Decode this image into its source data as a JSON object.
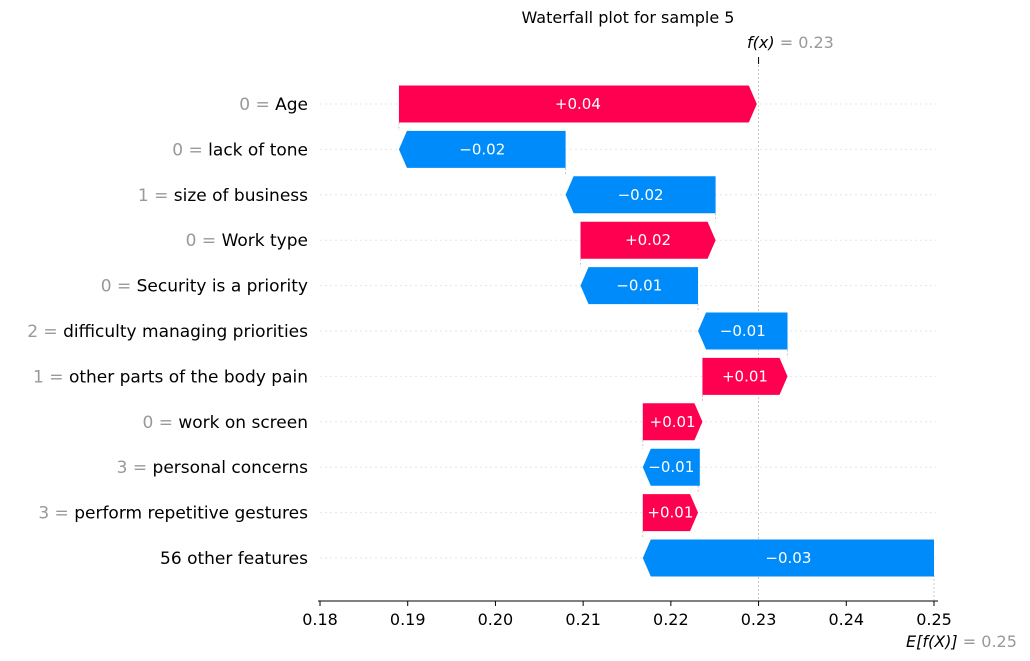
{
  "chart_data": {
    "type": "waterfall",
    "title": "Waterfall plot for sample 5",
    "fx": {
      "label": "f(x)",
      "value": "0.23",
      "x": 0.23
    },
    "efx": {
      "label": "E[f(X)]",
      "value": "0.25",
      "x": 0.25
    },
    "xlim": [
      0.18,
      0.25
    ],
    "xticks": [
      0.18,
      0.19,
      0.2,
      0.21,
      0.22,
      0.23,
      0.24,
      0.25
    ],
    "xtick_labels": [
      "0.18",
      "0.19",
      "0.20",
      "0.21",
      "0.22",
      "0.23",
      "0.24",
      "0.25"
    ],
    "colors": {
      "positive": "#ff0051",
      "negative": "#008bfb"
    },
    "features": [
      {
        "value": "0",
        "name": "Age",
        "label": "+0.04",
        "start": 0.189,
        "end": 0.2298
      },
      {
        "value": "0",
        "name": "lack of tone",
        "label": "−0.02",
        "start": 0.208,
        "end": 0.189
      },
      {
        "value": "1",
        "name": "size of business",
        "label": "−0.02",
        "start": 0.2251,
        "end": 0.208
      },
      {
        "value": "0",
        "name": "Work type",
        "label": "+0.02",
        "start": 0.2097,
        "end": 0.2251
      },
      {
        "value": "0",
        "name": "Security is a priority",
        "label": "−0.01",
        "start": 0.2231,
        "end": 0.2097
      },
      {
        "value": "2",
        "name": "difficulty managing priorities",
        "label": "−0.01",
        "start": 0.2333,
        "end": 0.2231
      },
      {
        "value": "1",
        "name": "other parts of the body pain",
        "label": "+0.01",
        "start": 0.2236,
        "end": 0.2333
      },
      {
        "value": "0",
        "name": "work on screen",
        "label": "+0.01",
        "start": 0.2168,
        "end": 0.2236
      },
      {
        "value": "3",
        "name": "personal concerns",
        "label": "−0.01",
        "start": 0.2233,
        "end": 0.2168
      },
      {
        "value": "3",
        "name": "perform repetitive gestures",
        "label": "+0.01",
        "start": 0.2168,
        "end": 0.2231
      },
      {
        "value": "",
        "name": "56 other features",
        "label": "−0.03",
        "start": 0.25,
        "end": 0.2168
      }
    ]
  }
}
